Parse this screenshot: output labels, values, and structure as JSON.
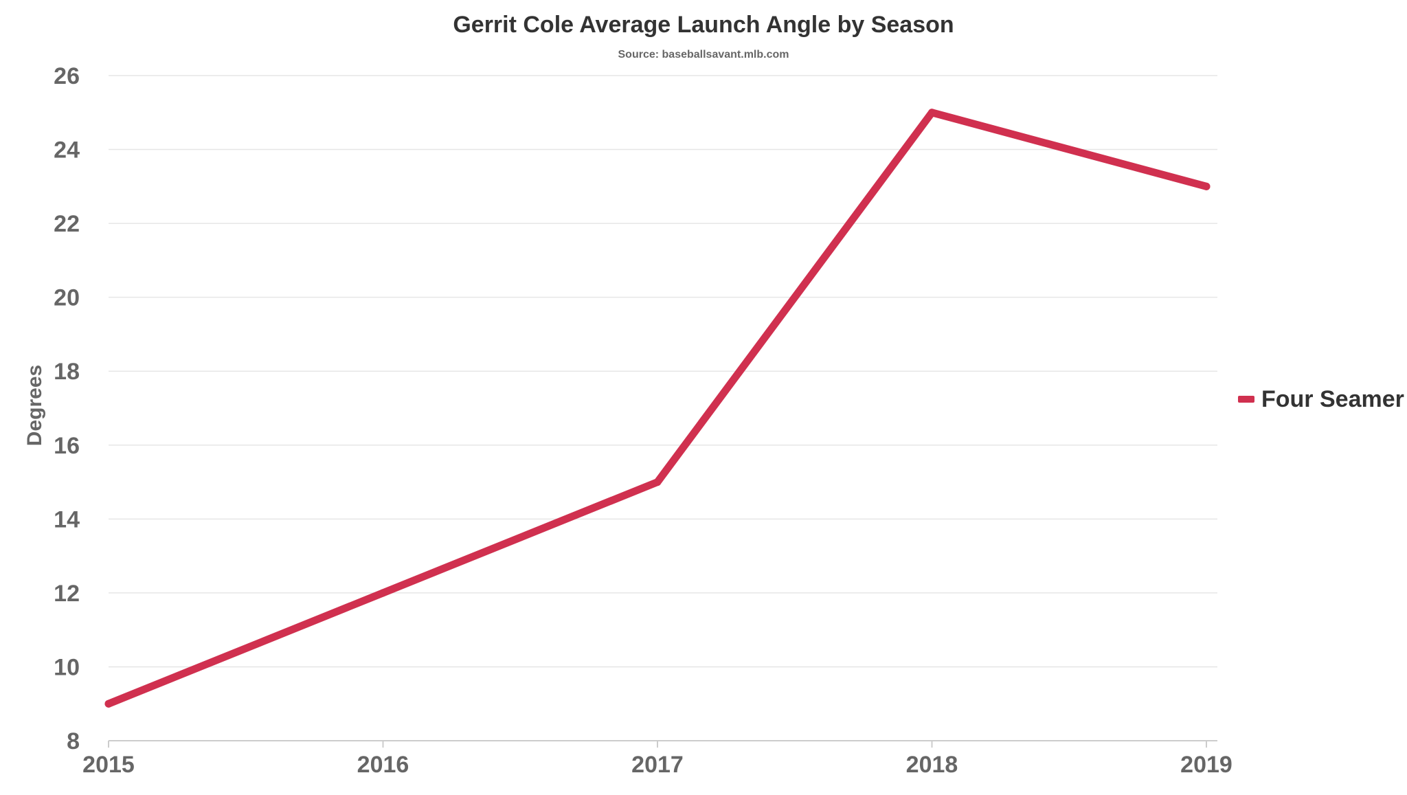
{
  "chart_data": {
    "type": "line",
    "title": "Gerrit Cole Average Launch Angle by Season",
    "subtitle": "Source: baseballsavant.mlb.com",
    "xlabel": "",
    "ylabel": "Degrees",
    "x": [
      "2015",
      "2016",
      "2017",
      "2018",
      "2019"
    ],
    "series": [
      {
        "name": "Four Seamer",
        "values": [
          9,
          12,
          15,
          25,
          23
        ],
        "color": "#d0304f"
      }
    ],
    "ylim": [
      8,
      26
    ],
    "yticks": [
      "8",
      "10",
      "12",
      "14",
      "16",
      "18",
      "20",
      "22",
      "24",
      "26"
    ],
    "grid": true,
    "legend_position": "right"
  }
}
